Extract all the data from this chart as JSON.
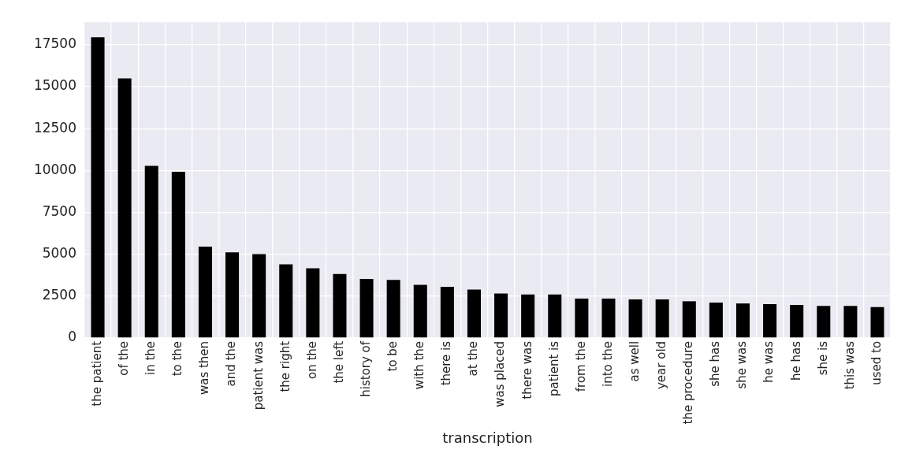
{
  "chart_data": {
    "type": "bar",
    "xlabel": "transcription",
    "categories": [
      "the patient",
      "of the",
      "in the",
      "to the",
      "was then",
      "and the",
      "patient was",
      "the right",
      "on the",
      "the left",
      "history of",
      "to be",
      "with the",
      "there is",
      "at the",
      "was placed",
      "there was",
      "patient is",
      "from the",
      "into the",
      "as well",
      "year old",
      "the procedure",
      "she has",
      "she was",
      "he was",
      "he has",
      "she is",
      "this was",
      "used to"
    ],
    "values": [
      17950,
      15500,
      10280,
      9920,
      5450,
      5110,
      5000,
      4400,
      4160,
      3820,
      3520,
      3470,
      3170,
      3050,
      2890,
      2650,
      2590,
      2590,
      2350,
      2350,
      2300,
      2300,
      2190,
      2110,
      2060,
      2020,
      1970,
      1910,
      1910,
      1840
    ],
    "color": "#000000",
    "ylim": [
      0,
      18850
    ],
    "yticks": [
      0,
      2500,
      5000,
      7500,
      10000,
      12500,
      15000,
      17500
    ],
    "grid": true,
    "legend": false
  }
}
